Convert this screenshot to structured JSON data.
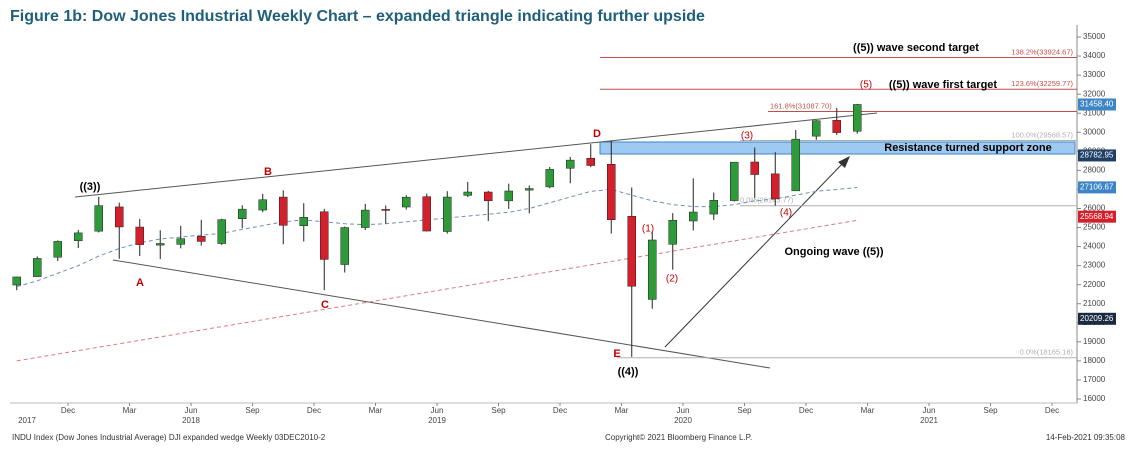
{
  "chart_data": {
    "type": "candlestick",
    "title": "Figure 1b: Dow Jones Industrial Weekly Chart – expanded triangle indicating further upside",
    "footer_left": "INDU Index (Dow Jones Industrial Average) DJI expanded wedge  Weekly 03DEC2010-2",
    "footer_center": "Copyright© 2021 Bloomberg Finance L.P.",
    "footer_right": "14-Feb-2021 09:35:08",
    "up_color": "#2f9a3a",
    "down_color": "#d4202a",
    "x": [
      "2017-09",
      "2017-10",
      "2017-11",
      "2017-12",
      "2018-01",
      "2018-02",
      "2018-03",
      "2018-04",
      "2018-05",
      "2018-06",
      "2018-07",
      "2018-08",
      "2018-09",
      "2018-10",
      "2018-11",
      "2018-12",
      "2019-01",
      "2019-02",
      "2019-03",
      "2019-04",
      "2019-05",
      "2019-06",
      "2019-07",
      "2019-08",
      "2019-09",
      "2019-10",
      "2019-11",
      "2019-12",
      "2020-01",
      "2020-02",
      "2020-03",
      "2020-04",
      "2020-05",
      "2020-06",
      "2020-07",
      "2020-08",
      "2020-09",
      "2020-10",
      "2020-11",
      "2020-12",
      "2021-01",
      "2021-02"
    ],
    "open": [
      21981,
      22423,
      23442,
      24305,
      24809,
      26083,
      25025,
      24076,
      24117,
      24542,
      24161,
      25461,
      25917,
      26598,
      25093,
      25827,
      23058,
      24999,
      25950,
      26076,
      26620,
      24791,
      26687,
      26864,
      26399,
      26963,
      27131,
      28110,
      28639,
      28320,
      25591,
      21227,
      24120,
      25343,
      25706,
      26413,
      28439,
      27818,
      26925,
      29796,
      30627,
      30054
    ],
    "high": [
      22420,
      23485,
      24327,
      24876,
      26617,
      26306,
      25449,
      24858,
      25087,
      25403,
      25464,
      26167,
      26770,
      26952,
      26278,
      25980,
      25051,
      26242,
      26156,
      26696,
      26781,
      26907,
      27399,
      26924,
      27306,
      27209,
      28175,
      28702,
      29374,
      29568,
      27102,
      24765,
      25758,
      27580,
      26838,
      28431,
      29199,
      28958,
      30116,
      30637,
      31272,
      31489
    ],
    "low": [
      21709,
      22416,
      23242,
      23921,
      24742,
      23360,
      23509,
      23345,
      23908,
      24052,
      24078,
      24965,
      25801,
      24122,
      24268,
      21713,
      22638,
      24867,
      25208,
      25943,
      24794,
      24680,
      26596,
      25339,
      25979,
      25743,
      27061,
      27325,
      28170,
      24681,
      18213,
      20735,
      22789,
      24843,
      25391,
      26365,
      26537,
      26143,
      26921,
      29602,
      29856,
      29926
    ],
    "close": [
      22405,
      23377,
      24272,
      24719,
      26149,
      25029,
      24103,
      24163,
      24416,
      24271,
      25415,
      25965,
      26458,
      25116,
      25538,
      23327,
      24999,
      25916,
      25929,
      26593,
      24815,
      26600,
      26864,
      26403,
      26917,
      27046,
      28051,
      28538,
      28256,
      25409,
      21917,
      24346,
      25383,
      25813,
      26428,
      28430,
      27782,
      26502,
      29638,
      30606,
      29983,
      31458
    ],
    "series": [
      {
        "color": "#6f8fb0",
        "values": [
          21900,
          22200,
          22600,
          23000,
          23500,
          23900,
          24200,
          24400,
          24500,
          24600,
          24700,
          24900,
          25100,
          25300,
          25400,
          25300,
          25200,
          25150,
          25200,
          25300,
          25400,
          25500,
          25600,
          25700,
          25800,
          26000,
          26300,
          26600,
          26900,
          27000,
          26700,
          26400,
          26200,
          26100,
          26100,
          26200,
          26400,
          26500,
          26700,
          26900,
          27000,
          27100
        ]
      },
      {
        "color": "#e07a7a",
        "values": [
          18000,
          18180,
          18360,
          18540,
          18720,
          18900,
          19080,
          19260,
          19440,
          19620,
          19800,
          19980,
          20160,
          20340,
          20520,
          20700,
          20880,
          21060,
          21240,
          21420,
          21600,
          21780,
          21960,
          22140,
          22320,
          22500,
          22680,
          22860,
          23040,
          23220,
          23400,
          23580,
          23760,
          23940,
          24120,
          24300,
          24480,
          24660,
          24840,
          25020,
          25200,
          25380
        ]
      }
    ],
    "ylim": [
      15700,
      35400
    ],
    "yticks": [
      16000,
      17000,
      18000,
      19000,
      20000,
      21000,
      22000,
      23000,
      24000,
      25000,
      26000,
      27000,
      28000,
      29000,
      30000,
      31000,
      32000,
      33000,
      34000,
      35000
    ],
    "xticks": [
      {
        "value": "2017-12",
        "label": "Dec"
      },
      {
        "value": "2018-03",
        "label": "Mar"
      },
      {
        "value": "2018-06",
        "label": "Jun"
      },
      {
        "value": "2018-09",
        "label": "Sep"
      },
      {
        "value": "2018-12",
        "label": "Dec"
      },
      {
        "value": "2019-03",
        "label": "Mar"
      },
      {
        "value": "2019-06",
        "label": "Jun"
      },
      {
        "value": "2019-09",
        "label": "Sep"
      },
      {
        "value": "2019-12",
        "label": "Dec"
      },
      {
        "value": "2020-03",
        "label": "Mar"
      },
      {
        "value": "2020-06",
        "label": "Jun"
      },
      {
        "value": "2020-09",
        "label": "Sep"
      },
      {
        "value": "2020-12",
        "label": "Dec"
      },
      {
        "value": "2021-03",
        "label": "Mar"
      },
      {
        "value": "2021-06",
        "label": "Jun"
      },
      {
        "value": "2021-09",
        "label": "Sep"
      },
      {
        "value": "2021-12",
        "label": "Dec"
      }
    ],
    "year_ticks": [
      {
        "value": "2017-10",
        "label": "2017"
      },
      {
        "value": "2018-06",
        "label": "2018"
      },
      {
        "value": "2019-06",
        "label": "2019"
      },
      {
        "value": "2020-06",
        "label": "2020"
      },
      {
        "value": "2021-06",
        "label": "2021"
      }
    ],
    "levels": [
      {
        "value": 33924.67,
        "label": "138.2%(33924.67)",
        "color": "#c0504d"
      },
      {
        "value": 32259.77,
        "label": "123.6%(32259.77)",
        "color": "#c0504d"
      },
      {
        "value": 31087.7,
        "label": "161.8%(31087.70)",
        "color": "#c0504d"
      },
      {
        "value": 29568.57,
        "label": "100.0%(29568.57)",
        "color": "#b0b0b0"
      },
      {
        "value": 26143.77,
        "label": "0.0%(26143.77)",
        "color": "#b0b0b0"
      },
      {
        "value": 18165.16,
        "label": "0.0%(18165.16)",
        "color": "#b0b0b0"
      }
    ],
    "price_tags": [
      {
        "value": 31458.4,
        "label": "31458.40",
        "color": "#3d85c6"
      },
      {
        "value": 28782.95,
        "label": "28782.95",
        "color": "#1f3f66"
      },
      {
        "value": 27106.67,
        "label": "27106.67",
        "color": "#3d85c6"
      },
      {
        "value": 25568.94,
        "label": "25568.94",
        "color": "#d4202a"
      },
      {
        "value": 20209.26,
        "label": "20209.26",
        "color": "#1a2a40"
      }
    ],
    "annotations": [
      {
        "text": "((3))",
        "color": "#000"
      },
      {
        "text": "B",
        "color": "#c00000"
      },
      {
        "text": "A",
        "color": "#c00000"
      },
      {
        "text": "C",
        "color": "#c00000"
      },
      {
        "text": "D",
        "color": "#c00000"
      },
      {
        "text": "E",
        "color": "#c00000"
      },
      {
        "text": "((4))",
        "color": "#000"
      },
      {
        "text": "(1)",
        "color": "#c00000"
      },
      {
        "text": "(2)",
        "color": "#c00000"
      },
      {
        "text": "(3)",
        "color": "#c00000"
      },
      {
        "text": "(4)",
        "color": "#c00000"
      },
      {
        "text": "(5)",
        "color": "#c00000"
      },
      {
        "text": "((5)) wave first target",
        "color": "#000"
      },
      {
        "text": "((5)) wave second target",
        "color": "#000"
      },
      {
        "text": "Ongoing wave ((5))",
        "color": "#000"
      },
      {
        "text": "Resistance turned support zone",
        "color": "#000"
      }
    ]
  }
}
